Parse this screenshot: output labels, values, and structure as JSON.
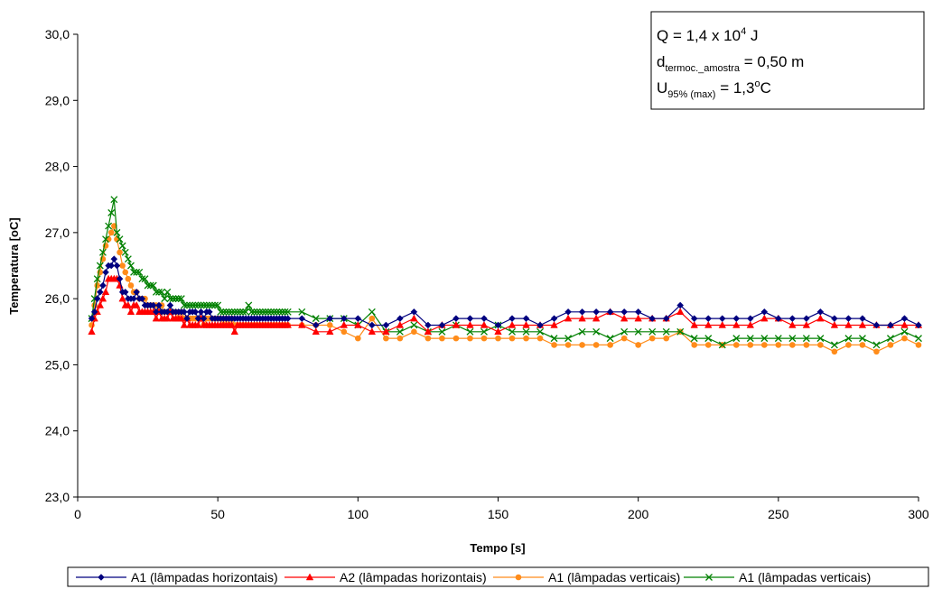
{
  "chart_data": {
    "type": "line",
    "xlabel": "Tempo [s]",
    "ylabel": "Temperatura [oC]",
    "xlim": [
      0,
      300
    ],
    "ylim": [
      23,
      30
    ],
    "x_ticks": [
      "0",
      "50",
      "100",
      "150",
      "200",
      "250",
      "300"
    ],
    "y_ticks": [
      "23,0",
      "24,0",
      "25,0",
      "26,0",
      "27,0",
      "28,0",
      "29,0",
      "30,0"
    ],
    "grid": false,
    "legend_position": "bottom",
    "annotation": {
      "line1_main": "Q = 1,4 x 10",
      "line1_sup": "4",
      "line1_tail": " J",
      "line2_main": "d",
      "line2_sub": "termoc._amostra",
      "line2_tail": " = 0,50 m",
      "line3_main": "U",
      "line3_sub": "95% (max)",
      "line3_tail": " = 1,3",
      "line3_sup": "o",
      "line3_end": "C"
    },
    "series": [
      {
        "name": "A1 (lâmpadas horizontais)",
        "color": "#00007f",
        "marker": "diamond",
        "x": [
          5,
          6,
          7,
          8,
          9,
          10,
          11,
          12,
          13,
          14,
          15,
          16,
          17,
          18,
          19,
          20,
          21,
          22,
          23,
          24,
          25,
          26,
          27,
          28,
          29,
          30,
          31,
          32,
          33,
          34,
          35,
          36,
          37,
          38,
          39,
          40,
          41,
          42,
          43,
          44,
          45,
          46,
          47,
          48,
          49,
          50,
          51,
          52,
          53,
          54,
          55,
          56,
          57,
          58,
          59,
          60,
          61,
          62,
          63,
          64,
          65,
          66,
          67,
          68,
          69,
          70,
          71,
          72,
          73,
          74,
          75,
          80,
          85,
          90,
          95,
          100,
          105,
          110,
          115,
          120,
          125,
          130,
          135,
          140,
          145,
          150,
          155,
          160,
          165,
          170,
          175,
          180,
          185,
          190,
          195,
          200,
          205,
          210,
          215,
          220,
          225,
          230,
          235,
          240,
          245,
          250,
          255,
          260,
          265,
          270,
          275,
          280,
          285,
          290,
          295,
          300
        ],
        "y": [
          25.7,
          25.8,
          26.0,
          26.1,
          26.2,
          26.4,
          26.5,
          26.5,
          26.6,
          26.5,
          26.3,
          26.1,
          26.1,
          26.0,
          26.0,
          26.0,
          26.1,
          26.0,
          26.0,
          25.9,
          25.9,
          25.9,
          25.9,
          25.8,
          25.9,
          25.8,
          25.8,
          25.8,
          25.9,
          25.8,
          25.8,
          25.8,
          25.8,
          25.8,
          25.7,
          25.8,
          25.8,
          25.8,
          25.7,
          25.8,
          25.7,
          25.8,
          25.8,
          25.7,
          25.7,
          25.7,
          25.7,
          25.7,
          25.7,
          25.7,
          25.7,
          25.7,
          25.7,
          25.7,
          25.7,
          25.7,
          25.7,
          25.7,
          25.7,
          25.7,
          25.7,
          25.7,
          25.7,
          25.7,
          25.7,
          25.7,
          25.7,
          25.7,
          25.7,
          25.7,
          25.7,
          25.7,
          25.6,
          25.7,
          25.7,
          25.7,
          25.6,
          25.6,
          25.7,
          25.8,
          25.6,
          25.6,
          25.7,
          25.7,
          25.7,
          25.6,
          25.7,
          25.7,
          25.6,
          25.7,
          25.8,
          25.8,
          25.8,
          25.8,
          25.8,
          25.8,
          25.7,
          25.7,
          25.9,
          25.7,
          25.7,
          25.7,
          25.7,
          25.7,
          25.8,
          25.7,
          25.7,
          25.7,
          25.8,
          25.7,
          25.7,
          25.7,
          25.6,
          25.6,
          25.7,
          25.6
        ]
      },
      {
        "name": "A2 (lâmpadas horizontais)",
        "color": "#ff0000",
        "marker": "triangle",
        "x": [
          5,
          6,
          7,
          8,
          9,
          10,
          11,
          12,
          13,
          14,
          15,
          16,
          17,
          18,
          19,
          20,
          21,
          22,
          23,
          24,
          25,
          26,
          27,
          28,
          29,
          30,
          31,
          32,
          33,
          34,
          35,
          36,
          37,
          38,
          39,
          40,
          41,
          42,
          43,
          44,
          45,
          46,
          47,
          48,
          49,
          50,
          51,
          52,
          53,
          54,
          55,
          56,
          57,
          58,
          59,
          60,
          61,
          62,
          63,
          64,
          65,
          66,
          67,
          68,
          69,
          70,
          71,
          72,
          73,
          74,
          75,
          80,
          85,
          90,
          95,
          100,
          105,
          110,
          115,
          120,
          125,
          130,
          135,
          140,
          145,
          150,
          155,
          160,
          165,
          170,
          175,
          180,
          185,
          190,
          195,
          200,
          205,
          210,
          215,
          220,
          225,
          230,
          235,
          240,
          245,
          250,
          255,
          260,
          265,
          270,
          275,
          280,
          285,
          290,
          295,
          300
        ],
        "y": [
          25.5,
          25.7,
          25.8,
          25.9,
          26.0,
          26.1,
          26.3,
          26.3,
          26.3,
          26.3,
          26.2,
          26.0,
          25.9,
          25.9,
          25.8,
          25.9,
          25.9,
          25.8,
          25.8,
          25.8,
          25.8,
          25.8,
          25.8,
          25.7,
          25.8,
          25.7,
          25.7,
          25.7,
          25.8,
          25.7,
          25.7,
          25.7,
          25.7,
          25.6,
          25.7,
          25.6,
          25.6,
          25.6,
          25.6,
          25.7,
          25.6,
          25.6,
          25.6,
          25.6,
          25.6,
          25.6,
          25.6,
          25.6,
          25.6,
          25.6,
          25.6,
          25.5,
          25.6,
          25.6,
          25.6,
          25.6,
          25.6,
          25.6,
          25.6,
          25.6,
          25.6,
          25.6,
          25.6,
          25.6,
          25.6,
          25.6,
          25.6,
          25.6,
          25.6,
          25.6,
          25.6,
          25.6,
          25.5,
          25.5,
          25.6,
          25.6,
          25.5,
          25.5,
          25.6,
          25.7,
          25.5,
          25.6,
          25.6,
          25.6,
          25.6,
          25.5,
          25.6,
          25.6,
          25.6,
          25.6,
          25.7,
          25.7,
          25.7,
          25.8,
          25.7,
          25.7,
          25.7,
          25.7,
          25.8,
          25.6,
          25.6,
          25.6,
          25.6,
          25.6,
          25.7,
          25.7,
          25.6,
          25.6,
          25.7,
          25.6,
          25.6,
          25.6,
          25.6,
          25.6,
          25.6,
          25.6
        ]
      },
      {
        "name": "A1 (lâmpadas verticais)",
        "color": "#ff8c1a",
        "marker": "circle",
        "x": [
          5,
          6,
          7,
          8,
          9,
          10,
          11,
          12,
          13,
          14,
          15,
          16,
          17,
          18,
          19,
          20,
          21,
          22,
          23,
          24,
          25,
          26,
          27,
          28,
          29,
          30,
          31,
          32,
          33,
          34,
          35,
          36,
          37,
          38,
          39,
          40,
          41,
          42,
          43,
          44,
          45,
          46,
          47,
          48,
          49,
          50,
          51,
          52,
          53,
          54,
          55,
          56,
          57,
          58,
          59,
          60,
          61,
          62,
          63,
          64,
          65,
          66,
          67,
          68,
          69,
          70,
          71,
          72,
          73,
          74,
          75,
          80,
          85,
          90,
          95,
          100,
          105,
          110,
          115,
          120,
          125,
          130,
          135,
          140,
          145,
          150,
          155,
          160,
          165,
          170,
          175,
          180,
          185,
          190,
          195,
          200,
          205,
          210,
          215,
          220,
          225,
          230,
          235,
          240,
          245,
          250,
          255,
          260,
          265,
          270,
          275,
          280,
          285,
          290,
          295,
          300
        ],
        "y": [
          25.6,
          25.9,
          26.2,
          26.4,
          26.6,
          26.8,
          26.9,
          27.0,
          27.1,
          26.9,
          26.7,
          26.5,
          26.4,
          26.3,
          26.2,
          26.1,
          26.1,
          26.0,
          26.0,
          26.0,
          25.9,
          25.9,
          25.9,
          25.9,
          25.8,
          25.9,
          25.8,
          25.8,
          25.8,
          25.8,
          25.8,
          25.7,
          25.8,
          25.7,
          25.7,
          25.7,
          25.7,
          25.7,
          25.7,
          25.7,
          25.6,
          25.7,
          25.7,
          25.7,
          25.7,
          25.7,
          25.7,
          25.6,
          25.7,
          25.6,
          25.7,
          25.6,
          25.6,
          25.6,
          25.6,
          25.6,
          25.6,
          25.6,
          25.6,
          25.6,
          25.6,
          25.6,
          25.6,
          25.6,
          25.6,
          25.6,
          25.6,
          25.6,
          25.6,
          25.6,
          25.6,
          25.6,
          25.6,
          25.6,
          25.5,
          25.4,
          25.7,
          25.4,
          25.4,
          25.5,
          25.4,
          25.4,
          25.4,
          25.4,
          25.4,
          25.4,
          25.4,
          25.4,
          25.4,
          25.3,
          25.3,
          25.3,
          25.3,
          25.3,
          25.4,
          25.3,
          25.4,
          25.4,
          25.5,
          25.3,
          25.3,
          25.3,
          25.3,
          25.3,
          25.3,
          25.3,
          25.3,
          25.3,
          25.3,
          25.2,
          25.3,
          25.3,
          25.2,
          25.3,
          25.4,
          25.3
        ]
      },
      {
        "name": "A1 (lâmpadas verticais)",
        "color": "#008000",
        "marker": "x",
        "x": [
          5,
          6,
          7,
          8,
          9,
          10,
          11,
          12,
          13,
          14,
          15,
          16,
          17,
          18,
          19,
          20,
          21,
          22,
          23,
          24,
          25,
          26,
          27,
          28,
          29,
          30,
          31,
          32,
          33,
          34,
          35,
          36,
          37,
          38,
          39,
          40,
          41,
          42,
          43,
          44,
          45,
          46,
          47,
          48,
          49,
          50,
          51,
          52,
          53,
          54,
          55,
          56,
          57,
          58,
          59,
          60,
          61,
          62,
          63,
          64,
          65,
          66,
          67,
          68,
          69,
          70,
          71,
          72,
          73,
          74,
          75,
          80,
          85,
          90,
          95,
          100,
          105,
          110,
          115,
          120,
          125,
          130,
          135,
          140,
          145,
          150,
          155,
          160,
          165,
          170,
          175,
          180,
          185,
          190,
          195,
          200,
          205,
          210,
          215,
          220,
          225,
          230,
          235,
          240,
          245,
          250,
          255,
          260,
          265,
          270,
          275,
          280,
          285,
          290,
          295,
          300
        ],
        "y": [
          25.7,
          26.0,
          26.3,
          26.5,
          26.7,
          26.9,
          27.1,
          27.3,
          27.5,
          27.0,
          26.9,
          26.8,
          26.7,
          26.6,
          26.5,
          26.4,
          26.4,
          26.4,
          26.3,
          26.3,
          26.2,
          26.2,
          26.2,
          26.1,
          26.1,
          26.1,
          26.0,
          26.1,
          26.0,
          26.0,
          26.0,
          26.0,
          26.0,
          25.9,
          25.9,
          25.9,
          25.9,
          25.9,
          25.9,
          25.9,
          25.9,
          25.9,
          25.9,
          25.9,
          25.9,
          25.9,
          25.8,
          25.8,
          25.8,
          25.8,
          25.8,
          25.8,
          25.8,
          25.8,
          25.8,
          25.8,
          25.9,
          25.8,
          25.8,
          25.8,
          25.8,
          25.8,
          25.8,
          25.8,
          25.8,
          25.8,
          25.8,
          25.8,
          25.8,
          25.8,
          25.8,
          25.8,
          25.7,
          25.7,
          25.7,
          25.6,
          25.8,
          25.5,
          25.5,
          25.6,
          25.5,
          25.5,
          25.6,
          25.5,
          25.5,
          25.6,
          25.5,
          25.5,
          25.5,
          25.4,
          25.4,
          25.5,
          25.5,
          25.4,
          25.5,
          25.5,
          25.5,
          25.5,
          25.5,
          25.4,
          25.4,
          25.3,
          25.4,
          25.4,
          25.4,
          25.4,
          25.4,
          25.4,
          25.4,
          25.3,
          25.4,
          25.4,
          25.3,
          25.4,
          25.5,
          25.4
        ]
      }
    ]
  }
}
